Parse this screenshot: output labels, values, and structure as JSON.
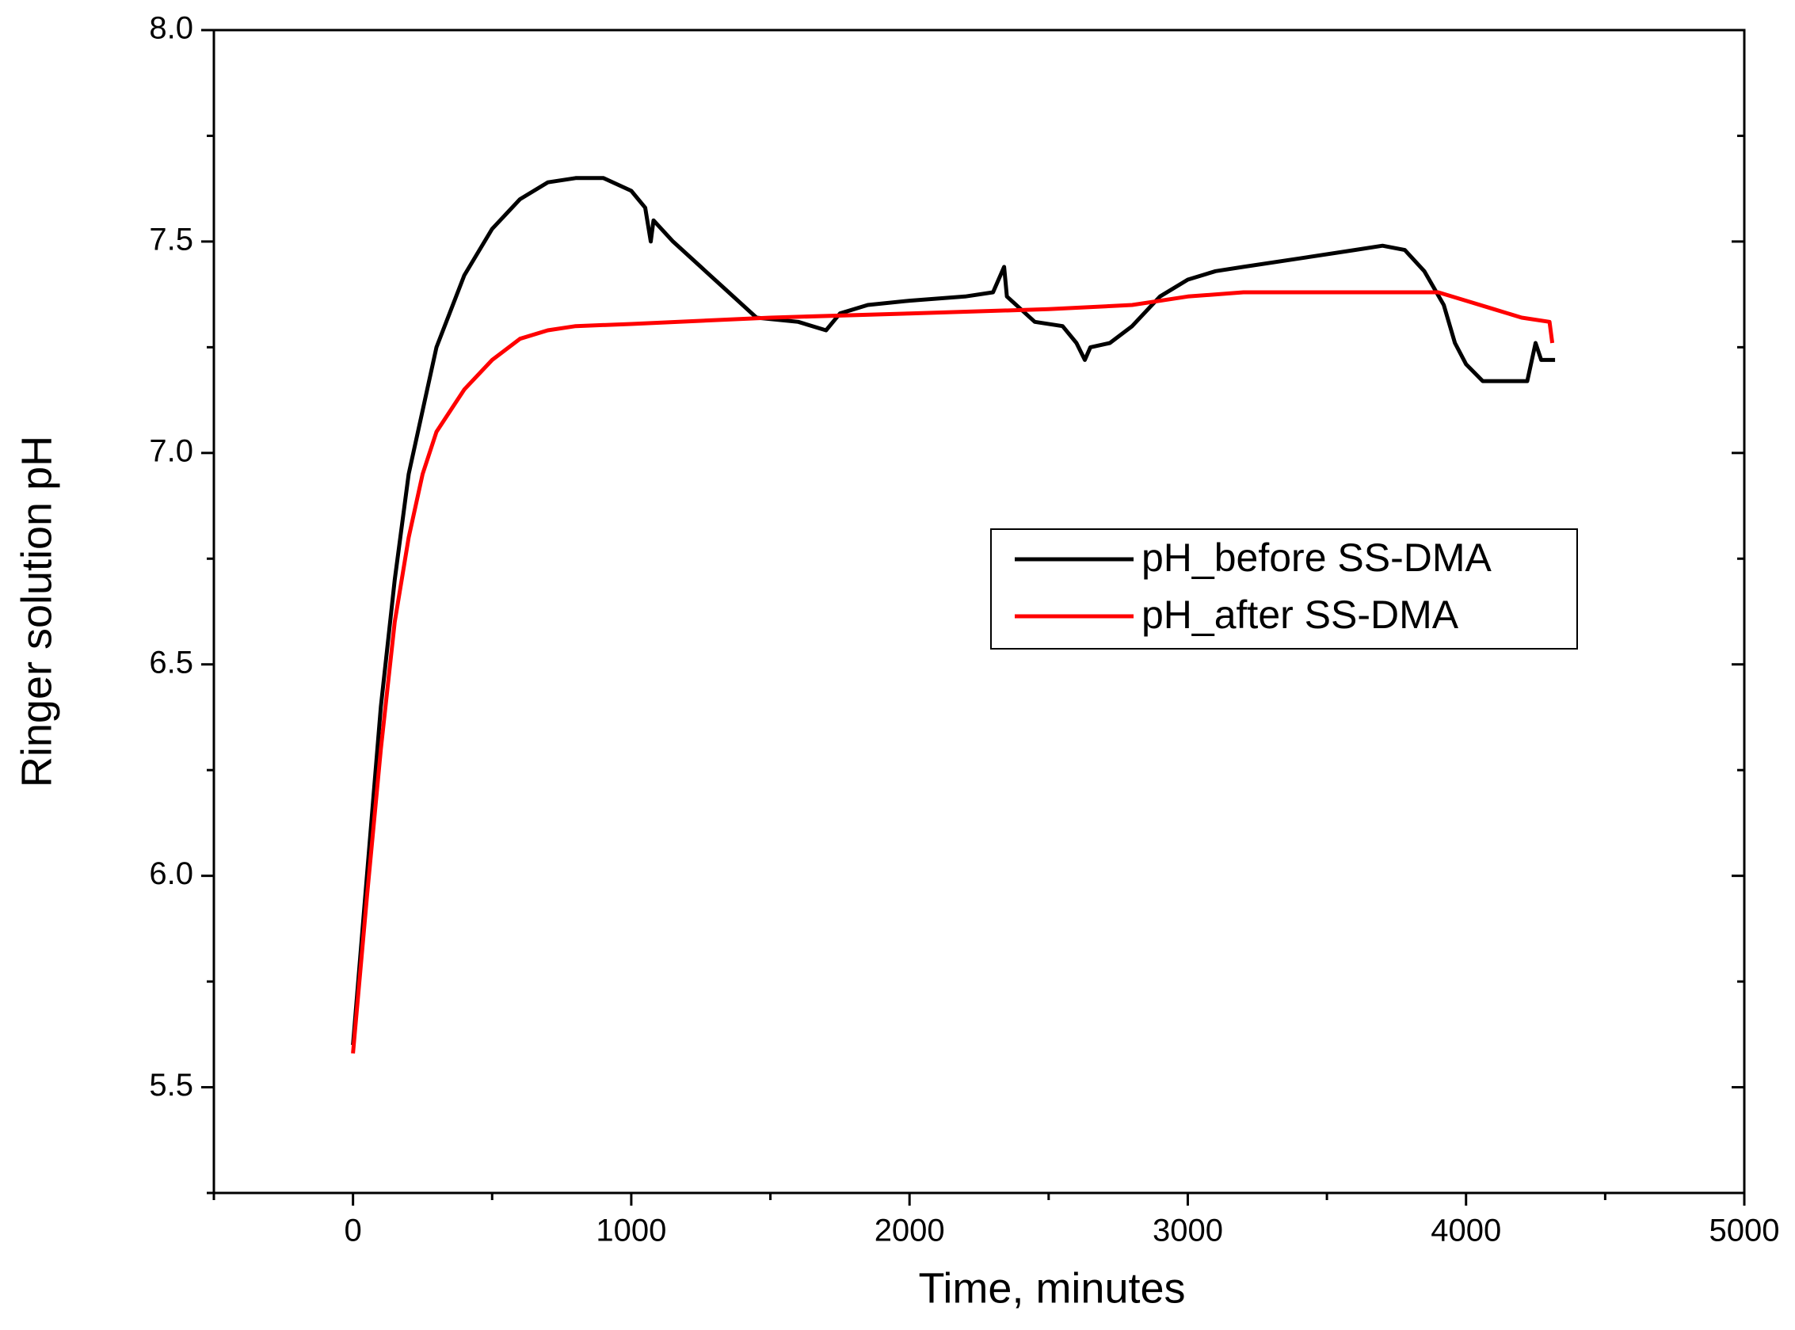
{
  "chart_data": {
    "type": "line",
    "xlabel": "Time, minutes",
    "ylabel": "Ringer solution pH",
    "xlim": [
      -500,
      5000
    ],
    "ylim": [
      5.25,
      8.0
    ],
    "xticks": [
      0,
      1000,
      2000,
      3000,
      4000,
      5000
    ],
    "xminorticks": [
      -500,
      500,
      1500,
      2500,
      3500,
      4500
    ],
    "yticks": [
      {
        "value": 5.5,
        "label": "5.5"
      },
      {
        "value": 6,
        "label": "6.0"
      },
      {
        "value": 6.5,
        "label": "6.5"
      },
      {
        "value": 7,
        "label": "7.0"
      },
      {
        "value": 7.5,
        "label": "7.5"
      },
      {
        "value": 8,
        "label": "8.0"
      }
    ],
    "yminorticks": [
      5.25,
      5.75,
      6.25,
      6.75,
      7.25,
      7.75
    ],
    "legend_position": "center right",
    "series": [
      {
        "name": "pH_before SS-DMA",
        "color": "#000000",
        "x": [
          0,
          50,
          100,
          150,
          200,
          300,
          400,
          500,
          600,
          700,
          800,
          900,
          1000,
          1050,
          1070,
          1080,
          1150,
          1250,
          1350,
          1450,
          1600,
          1700,
          1750,
          1850,
          2000,
          2200,
          2300,
          2340,
          2350,
          2400,
          2450,
          2550,
          2600,
          2630,
          2650,
          2720,
          2800,
          2900,
          3000,
          3100,
          3200,
          3400,
          3600,
          3700,
          3780,
          3850,
          3920,
          3960,
          4000,
          4060,
          4150,
          4220,
          4250,
          4270,
          4320
        ],
        "values": [
          5.6,
          6.0,
          6.4,
          6.7,
          6.95,
          7.25,
          7.42,
          7.53,
          7.6,
          7.64,
          7.65,
          7.65,
          7.62,
          7.58,
          7.5,
          7.55,
          7.5,
          7.44,
          7.38,
          7.32,
          7.31,
          7.29,
          7.33,
          7.35,
          7.36,
          7.37,
          7.38,
          7.44,
          7.37,
          7.34,
          7.31,
          7.3,
          7.26,
          7.22,
          7.25,
          7.26,
          7.3,
          7.37,
          7.41,
          7.43,
          7.44,
          7.46,
          7.48,
          7.49,
          7.48,
          7.43,
          7.35,
          7.26,
          7.21,
          7.17,
          7.17,
          7.17,
          7.26,
          7.22,
          7.22
        ]
      },
      {
        "name": "pH_after SS-DMA",
        "color": "#ff0000",
        "x": [
          0,
          50,
          100,
          150,
          200,
          250,
          300,
          400,
          500,
          600,
          700,
          800,
          1000,
          1500,
          2000,
          2500,
          2800,
          3000,
          3200,
          3500,
          3900,
          4000,
          4100,
          4200,
          4300,
          4310
        ],
        "values": [
          5.58,
          5.95,
          6.3,
          6.6,
          6.8,
          6.95,
          7.05,
          7.15,
          7.22,
          7.27,
          7.29,
          7.3,
          7.305,
          7.32,
          7.33,
          7.34,
          7.35,
          7.37,
          7.38,
          7.38,
          7.38,
          7.36,
          7.34,
          7.32,
          7.31,
          7.26
        ]
      }
    ]
  }
}
